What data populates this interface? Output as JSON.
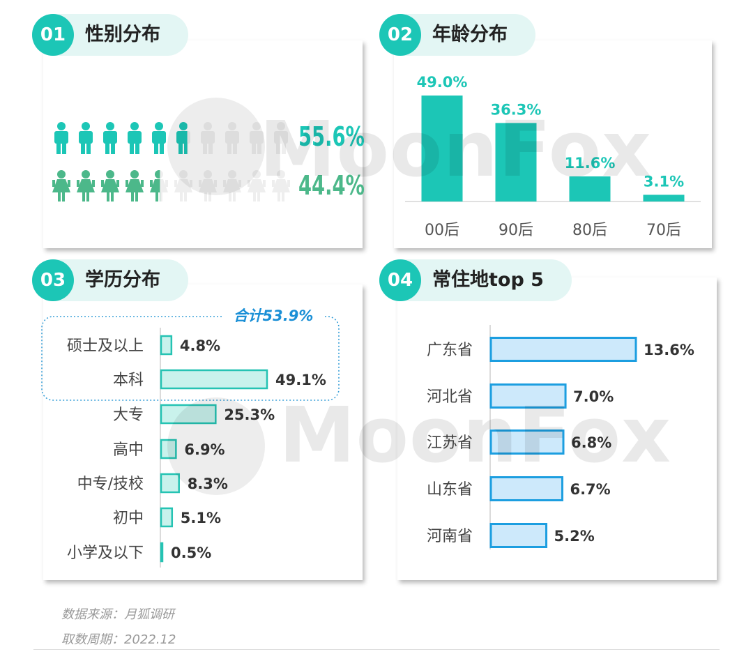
{
  "colors": {
    "teal": "#1cc6b6",
    "green": "#4cb88a",
    "edu_fill": "#c9f2ec",
    "edu_stroke": "#25c3b3",
    "res_fill": "#cde9fb",
    "res_stroke": "#1c9ee0"
  },
  "watermark": "MoonFox",
  "panels": {
    "gender": {
      "num": "01",
      "title": "性别分布"
    },
    "age": {
      "num": "02",
      "title": "年龄分布"
    },
    "edu": {
      "num": "03",
      "title": "学历分布",
      "group_label": "合计53.9%"
    },
    "res": {
      "num": "04",
      "title": "常住地top 5"
    }
  },
  "footer": {
    "source": "数据来源：月狐调研",
    "period": "取数周期：2022.12"
  },
  "chart_data": [
    {
      "type": "bar",
      "name_key": "gender",
      "categories": [
        "male",
        "female"
      ],
      "values": [
        55.6,
        44.4
      ],
      "labels": [
        "55.6%",
        "44.4%"
      ],
      "icons": [
        "male-person-icon",
        "female-person-icon"
      ]
    },
    {
      "type": "bar",
      "name_key": "age",
      "categories": [
        "00后",
        "90后",
        "80后",
        "70后"
      ],
      "values": [
        49.0,
        36.3,
        11.6,
        3.1
      ],
      "labels": [
        "49.0%",
        "36.3%",
        "11.6%",
        "3.1%"
      ]
    },
    {
      "type": "bar",
      "name_key": "edu",
      "orientation": "horizontal",
      "categories": [
        "硕士及以上",
        "本科",
        "大专",
        "高中",
        "中专/技校",
        "初中",
        "小学及以下"
      ],
      "values": [
        4.8,
        49.1,
        25.3,
        6.9,
        8.3,
        5.1,
        0.5
      ],
      "labels": [
        "4.8%",
        "49.1%",
        "25.3%",
        "6.9%",
        "8.3%",
        "5.1%",
        "0.5%"
      ]
    },
    {
      "type": "bar",
      "name_key": "res",
      "orientation": "horizontal",
      "categories": [
        "广东省",
        "河北省",
        "江苏省",
        "山东省",
        "河南省"
      ],
      "values": [
        13.6,
        7.0,
        6.8,
        6.7,
        5.2
      ],
      "labels": [
        "13.6%",
        "7.0%",
        "6.8%",
        "6.7%",
        "5.2%"
      ]
    }
  ]
}
